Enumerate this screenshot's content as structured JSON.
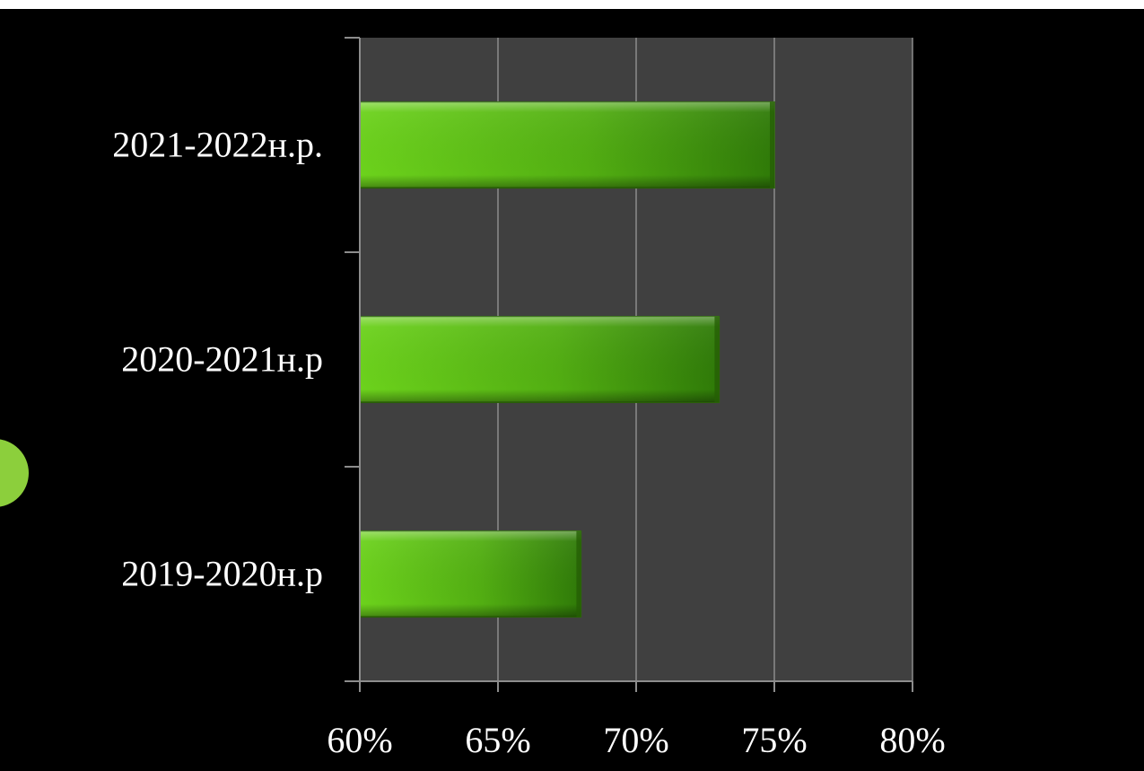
{
  "chart_data": {
    "type": "bar",
    "orientation": "horizontal",
    "categories": [
      "2019-2020н.р",
      "2020-2021н.р",
      "2021-2022н.р."
    ],
    "values": [
      68,
      73,
      75
    ],
    "value_unit": "%",
    "xlim": [
      60,
      80
    ],
    "xticks": [
      "60%",
      "65%",
      "70%",
      "75%",
      "80%"
    ],
    "xtick_values": [
      60,
      65,
      70,
      75,
      80
    ],
    "title": "",
    "xlabel": "",
    "ylabel": "",
    "grid": "vertical",
    "legend": "none"
  },
  "colors": {
    "background": "#000000",
    "plot_area": "#404040",
    "gridline": "#8c8c8c",
    "bar_light": "#6cd21c",
    "bar_dark": "#2f7a08",
    "accent": "#8ccf3c",
    "text": "#ffffff"
  }
}
